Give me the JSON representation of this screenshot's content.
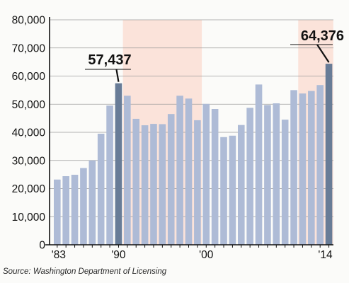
{
  "chart_data": {
    "type": "bar",
    "categories": [
      "'83",
      "'84",
      "'85",
      "'86",
      "'87",
      "'88",
      "'89",
      "'90",
      "'91",
      "'92",
      "'93",
      "'94",
      "'95",
      "'96",
      "'97",
      "'98",
      "'99",
      "'00",
      "'01",
      "'02",
      "'03",
      "'04",
      "'05",
      "'06",
      "'07",
      "'08",
      "'09",
      "'10",
      "'11",
      "'12",
      "'13",
      "'14"
    ],
    "values": [
      23200,
      24400,
      24900,
      27300,
      30000,
      39500,
      49500,
      57437,
      53000,
      44800,
      42500,
      43000,
      42900,
      46500,
      53000,
      52000,
      44300,
      50100,
      48300,
      38300,
      38800,
      42600,
      48700,
      57000,
      49700,
      50300,
      44500,
      55000,
      53800,
      54700,
      56800,
      64376
    ],
    "x_tick_labels": [
      "'83",
      "'90",
      "'00",
      "'14"
    ],
    "y_ticks": [
      "0",
      "10,000",
      "20,000",
      "30,000",
      "40,000",
      "50,000",
      "60,000",
      "70,000",
      "80,000"
    ],
    "ylim": [
      0,
      80000
    ],
    "grid": true,
    "highlight_bars": [
      "'90",
      "'14"
    ],
    "shaded_periods": [
      [
        "'91",
        "'99"
      ],
      [
        "'11",
        "'14"
      ]
    ],
    "annotations": [
      {
        "category": "'90",
        "label": "57,437"
      },
      {
        "category": "'14",
        "label": "64,376"
      }
    ],
    "colors": {
      "bar": "#aebbd6",
      "highlight": "#687c97",
      "shade": "#fbe3da",
      "grid": "#9b9b9b",
      "axis": "#111111"
    }
  },
  "source": "Source: Washington Department of Licensing"
}
